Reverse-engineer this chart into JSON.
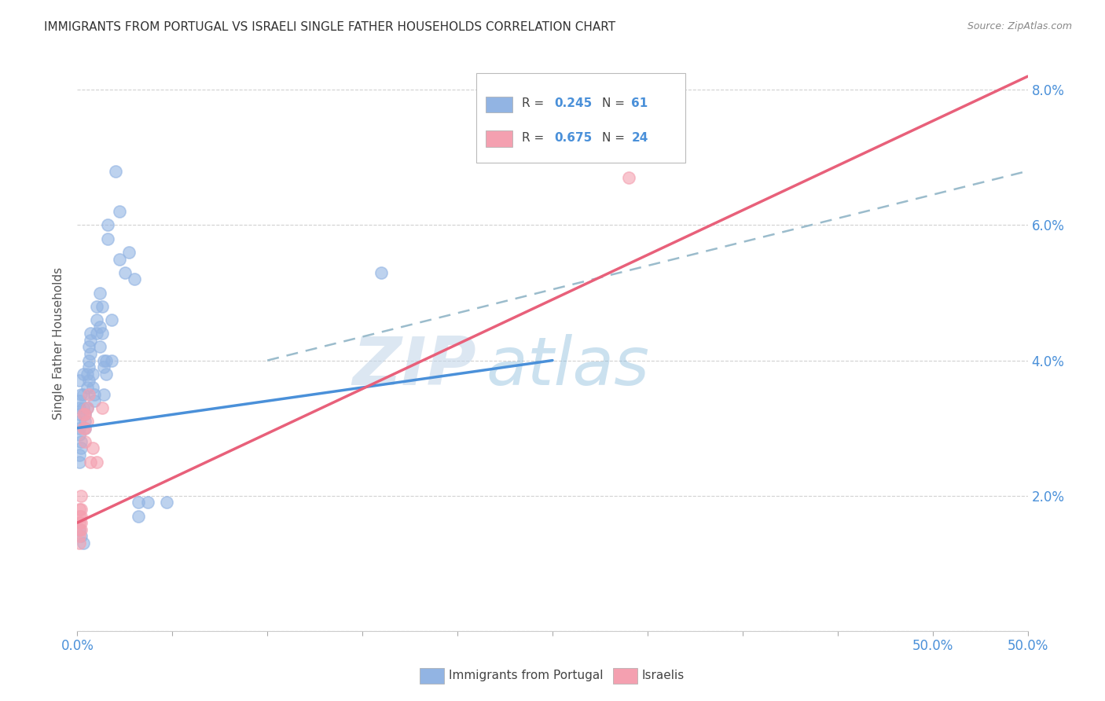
{
  "title": "IMMIGRANTS FROM PORTUGAL VS ISRAELI SINGLE FATHER HOUSEHOLDS CORRELATION CHART",
  "source": "Source: ZipAtlas.com",
  "ylabel": "Single Father Households",
  "xlim": [
    0,
    0.5
  ],
  "ylim": [
    0,
    0.085
  ],
  "xticks": [
    0.0,
    0.05,
    0.1,
    0.15,
    0.2,
    0.25,
    0.3,
    0.35,
    0.4,
    0.45,
    0.5
  ],
  "yticks": [
    0.0,
    0.02,
    0.04,
    0.06,
    0.08
  ],
  "xtick_labels_show": {
    "0.0": "0.0%",
    "0.5": "50.0%"
  },
  "yticklabels_right": [
    "",
    "2.0%",
    "4.0%",
    "6.0%",
    "8.0%"
  ],
  "blue_color": "#92b4e3",
  "pink_color": "#f4a0b0",
  "blue_line_color": "#4a90d9",
  "pink_line_color": "#e8607a",
  "dashed_line_color": "#9bbccc",
  "watermark_zip_color": "#c0d4e8",
  "watermark_atlas_color": "#7eb4d8",
  "legend_label_blue": "Immigrants from Portugal",
  "legend_label_pink": "Israelis",
  "blue_scatter": [
    [
      0.001,
      0.037
    ],
    [
      0.002,
      0.035
    ],
    [
      0.001,
      0.034
    ],
    [
      0.001,
      0.033
    ],
    [
      0.001,
      0.032
    ],
    [
      0.001,
      0.031
    ],
    [
      0.001,
      0.03
    ],
    [
      0.001,
      0.029
    ],
    [
      0.002,
      0.028
    ],
    [
      0.002,
      0.027
    ],
    [
      0.001,
      0.026
    ],
    [
      0.001,
      0.025
    ],
    [
      0.003,
      0.038
    ],
    [
      0.003,
      0.035
    ],
    [
      0.003,
      0.033
    ],
    [
      0.004,
      0.032
    ],
    [
      0.004,
      0.031
    ],
    [
      0.004,
      0.03
    ],
    [
      0.005,
      0.038
    ],
    [
      0.005,
      0.036
    ],
    [
      0.005,
      0.033
    ],
    [
      0.006,
      0.042
    ],
    [
      0.006,
      0.04
    ],
    [
      0.006,
      0.039
    ],
    [
      0.006,
      0.037
    ],
    [
      0.007,
      0.044
    ],
    [
      0.007,
      0.043
    ],
    [
      0.007,
      0.041
    ],
    [
      0.008,
      0.038
    ],
    [
      0.008,
      0.036
    ],
    [
      0.009,
      0.035
    ],
    [
      0.009,
      0.034
    ],
    [
      0.01,
      0.048
    ],
    [
      0.01,
      0.046
    ],
    [
      0.01,
      0.044
    ],
    [
      0.012,
      0.05
    ],
    [
      0.012,
      0.045
    ],
    [
      0.012,
      0.042
    ],
    [
      0.013,
      0.048
    ],
    [
      0.013,
      0.044
    ],
    [
      0.014,
      0.04
    ],
    [
      0.014,
      0.039
    ],
    [
      0.014,
      0.035
    ],
    [
      0.015,
      0.04
    ],
    [
      0.015,
      0.038
    ],
    [
      0.016,
      0.06
    ],
    [
      0.016,
      0.058
    ],
    [
      0.018,
      0.046
    ],
    [
      0.018,
      0.04
    ],
    [
      0.02,
      0.068
    ],
    [
      0.022,
      0.062
    ],
    [
      0.022,
      0.055
    ],
    [
      0.025,
      0.053
    ],
    [
      0.027,
      0.056
    ],
    [
      0.03,
      0.052
    ],
    [
      0.032,
      0.019
    ],
    [
      0.032,
      0.017
    ],
    [
      0.037,
      0.019
    ],
    [
      0.047,
      0.019
    ],
    [
      0.16,
      0.053
    ],
    [
      0.001,
      0.015
    ],
    [
      0.002,
      0.014
    ],
    [
      0.003,
      0.013
    ]
  ],
  "pink_scatter": [
    [
      0.001,
      0.018
    ],
    [
      0.001,
      0.017
    ],
    [
      0.001,
      0.016
    ],
    [
      0.001,
      0.015
    ],
    [
      0.001,
      0.014
    ],
    [
      0.001,
      0.013
    ],
    [
      0.002,
      0.02
    ],
    [
      0.002,
      0.018
    ],
    [
      0.002,
      0.017
    ],
    [
      0.002,
      0.016
    ],
    [
      0.002,
      0.015
    ],
    [
      0.003,
      0.032
    ],
    [
      0.003,
      0.03
    ],
    [
      0.004,
      0.032
    ],
    [
      0.004,
      0.03
    ],
    [
      0.004,
      0.028
    ],
    [
      0.005,
      0.033
    ],
    [
      0.005,
      0.031
    ],
    [
      0.006,
      0.035
    ],
    [
      0.007,
      0.025
    ],
    [
      0.008,
      0.027
    ],
    [
      0.01,
      0.025
    ],
    [
      0.013,
      0.033
    ],
    [
      0.29,
      0.067
    ]
  ],
  "blue_trend_x": [
    0.0,
    0.25
  ],
  "blue_trend_y": [
    0.03,
    0.04
  ],
  "pink_trend_x": [
    0.0,
    0.5
  ],
  "pink_trend_y": [
    0.016,
    0.082
  ],
  "dashed_trend_x": [
    0.1,
    0.5
  ],
  "dashed_trend_y": [
    0.04,
    0.068
  ]
}
